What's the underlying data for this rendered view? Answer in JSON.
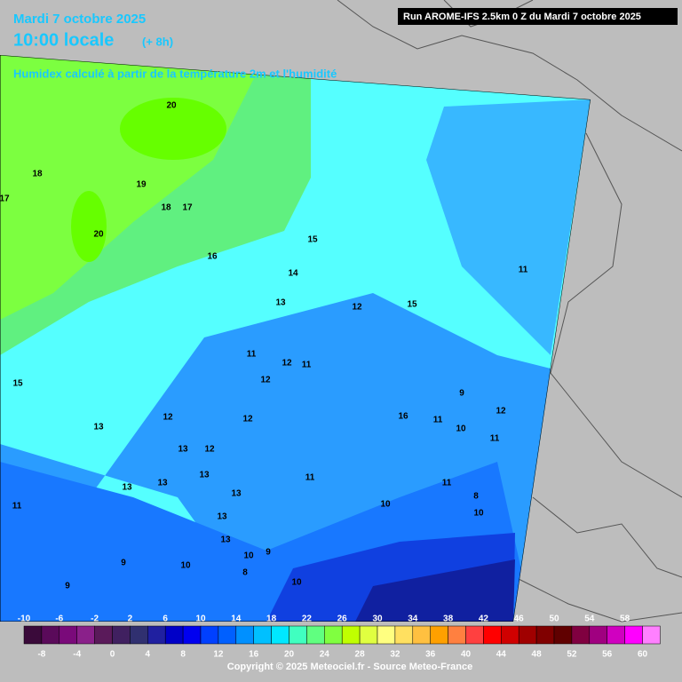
{
  "header": {
    "date": "Mardi 7 octobre 2025",
    "time": "10:00 locale",
    "offset": "(+ 8h)",
    "subtitle": "Humidex calculé à partir de la température 2m et l'humidité",
    "run": "Run AROME-IFS 2.5km 0 Z du Mardi 7 octobre 2025"
  },
  "map": {
    "contour_labels": [
      20,
      18,
      17,
      19,
      18,
      17,
      20,
      16,
      15,
      14,
      13,
      12,
      15,
      11,
      11,
      12,
      11,
      12,
      9,
      12,
      16,
      11,
      10,
      11,
      15,
      12,
      12,
      13,
      13,
      12,
      13,
      11,
      11,
      8,
      10,
      13,
      13,
      13,
      11,
      10,
      13,
      13,
      10,
      9,
      9,
      10,
      8,
      9,
      10
    ]
  },
  "legend": {
    "colors": [
      "#3a0a3a",
      "#5a0a5a",
      "#7a0a7a",
      "#8a208a",
      "#5a1a5a",
      "#402060",
      "#303070",
      "#2020a0",
      "#0000c8",
      "#0000f0",
      "#0040ff",
      "#0060ff",
      "#0090ff",
      "#00c0ff",
      "#00e8ff",
      "#40ffc0",
      "#60ff80",
      "#80ff40",
      "#c0ff00",
      "#e0ff40",
      "#ffff80",
      "#ffe060",
      "#ffc040",
      "#ffa000",
      "#ff8040",
      "#ff4040",
      "#ff0000",
      "#d00000",
      "#a00000",
      "#800000",
      "#600000",
      "#800040",
      "#a00080",
      "#d000c0",
      "#ff00ff",
      "#ff80ff"
    ],
    "top_labels": [
      -10,
      -6,
      -2,
      2,
      6,
      10,
      14,
      18,
      22,
      26,
      30,
      34,
      38,
      42,
      46,
      50,
      54,
      58
    ],
    "bottom_labels": [
      -8,
      -4,
      0,
      4,
      8,
      12,
      16,
      20,
      24,
      28,
      32,
      36,
      40,
      44,
      48,
      52,
      56,
      60
    ]
  },
  "footer": {
    "copyright": "Copyright © 2025 Meteociel.fr - Source Meteo-France"
  }
}
